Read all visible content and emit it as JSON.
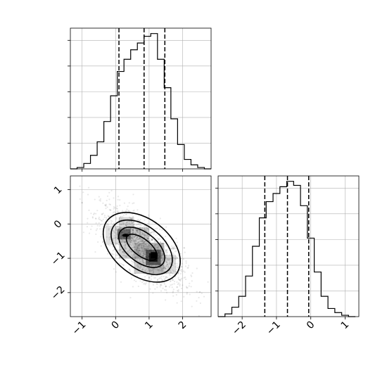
{
  "chart_data": {
    "type": "corner",
    "grid": true,
    "panels": [
      {
        "id": "marginal-x",
        "type": "histogram",
        "xlim": [
          -1.35,
          2.85
        ],
        "xticks": [
          -1,
          0,
          1,
          2
        ],
        "show_tick_labels": false,
        "ylim": [
          0,
          1.04
        ],
        "bin_edges": [
          -1.35,
          -1.15,
          -0.95,
          -0.75,
          -0.55,
          -0.35,
          -0.15,
          0.05,
          0.25,
          0.45,
          0.65,
          0.85,
          1.05,
          1.25,
          1.45,
          1.65,
          1.85,
          2.05,
          2.25,
          2.45,
          2.65,
          2.85
        ],
        "counts": [
          0.0,
          0.01,
          0.04,
          0.1,
          0.2,
          0.35,
          0.54,
          0.72,
          0.81,
          0.88,
          0.93,
          0.98,
          1.0,
          0.81,
          0.6,
          0.37,
          0.18,
          0.07,
          0.03,
          0.01,
          0.0
        ],
        "quantiles": [
          0.1,
          0.85,
          1.47
        ]
      },
      {
        "id": "marginal-y",
        "type": "histogram",
        "xlim": [
          -2.7,
          1.4
        ],
        "xticks": [
          -2,
          -1,
          0,
          1
        ],
        "xtick_labels": [
          "−2",
          "−1",
          "0",
          "1"
        ],
        "ylim": [
          0,
          1.04
        ],
        "bin_edges": [
          -2.7,
          -2.5,
          -2.3,
          -2.1,
          -1.9,
          -1.7,
          -1.5,
          -1.3,
          -1.1,
          -0.9,
          -0.7,
          -0.5,
          -0.3,
          -0.1,
          0.1,
          0.3,
          0.5,
          0.7,
          0.9,
          1.1,
          1.3
        ],
        "counts": [
          0.0,
          0.02,
          0.07,
          0.15,
          0.3,
          0.52,
          0.73,
          0.85,
          0.91,
          0.96,
          1.0,
          0.97,
          0.82,
          0.58,
          0.33,
          0.15,
          0.06,
          0.03,
          0.01,
          0.0
        ],
        "quantiles": [
          -1.34,
          -0.68,
          -0.06
        ]
      },
      {
        "id": "joint",
        "type": "2d-density",
        "xlim": [
          -1.35,
          2.85
        ],
        "ylim": [
          -2.7,
          1.4
        ],
        "xticks": [
          -1,
          0,
          1,
          2
        ],
        "xtick_labels": [
          "−1",
          "0",
          "1",
          "2"
        ],
        "yticks": [
          -2,
          -1,
          0,
          1
        ],
        "ytick_labels": [
          "−2",
          "−1",
          "0",
          "1"
        ],
        "contour_levels": 4
      }
    ]
  }
}
